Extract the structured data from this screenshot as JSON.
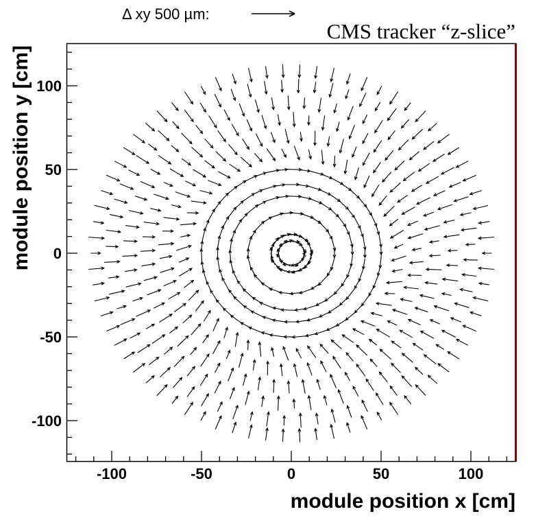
{
  "chart_data": {
    "type": "vector_field",
    "title": "CMS tracker “z-slice”",
    "scale_label": "Δ xy 500 µm:",
    "scale_value_um": 500,
    "xlabel": "module position x [cm]",
    "ylabel": "module position y [cm]",
    "xlim": [
      -125,
      125
    ],
    "ylim": [
      -125,
      125
    ],
    "x_ticks": [
      -100,
      -50,
      0,
      50,
      100
    ],
    "y_ticks": [
      -100,
      -50,
      0,
      50,
      100
    ],
    "x_tick_labels": [
      "-100",
      "-50",
      "0",
      "50",
      "100"
    ],
    "y_tick_labels": [
      "-100",
      "-50",
      "0",
      "50",
      "100"
    ],
    "grid": false,
    "rings": [
      {
        "radius": 7,
        "count": 14,
        "phase_deg": 10,
        "angle_from_tangent_deg": 180
      },
      {
        "radius": 11,
        "count": 20,
        "phase_deg": 5,
        "angle_from_tangent_deg": 180
      },
      {
        "radius": 24,
        "count": 26,
        "phase_deg": 0,
        "angle_from_tangent_deg": 180
      },
      {
        "radius": 34,
        "count": 34,
        "phase_deg": 3,
        "angle_from_tangent_deg": 180
      },
      {
        "radius": 41,
        "count": 40,
        "phase_deg": 0,
        "angle_from_tangent_deg": 180
      },
      {
        "radius": 50,
        "count": 50,
        "phase_deg": 2,
        "angle_from_tangent_deg": 180
      },
      {
        "radius": 60,
        "count": 52,
        "phase_deg": 4,
        "angle_from_tangent_deg": 112
      },
      {
        "radius": 70,
        "count": 56,
        "phase_deg": 2,
        "angle_from_tangent_deg": 100
      },
      {
        "radius": 80,
        "count": 60,
        "phase_deg": 5,
        "angle_from_tangent_deg": 95
      },
      {
        "radius": 90,
        "count": 64,
        "phase_deg": 1,
        "angle_from_tangent_deg": 92
      },
      {
        "radius": 100,
        "count": 68,
        "phase_deg": 3,
        "angle_from_tangent_deg": 90
      },
      {
        "radius": 109,
        "count": 74,
        "phase_deg": 0,
        "angle_from_tangent_deg": 90
      }
    ],
    "arrow_length_cm": 7,
    "line_color": "#000000",
    "right_edge_color": "#8b0000"
  }
}
